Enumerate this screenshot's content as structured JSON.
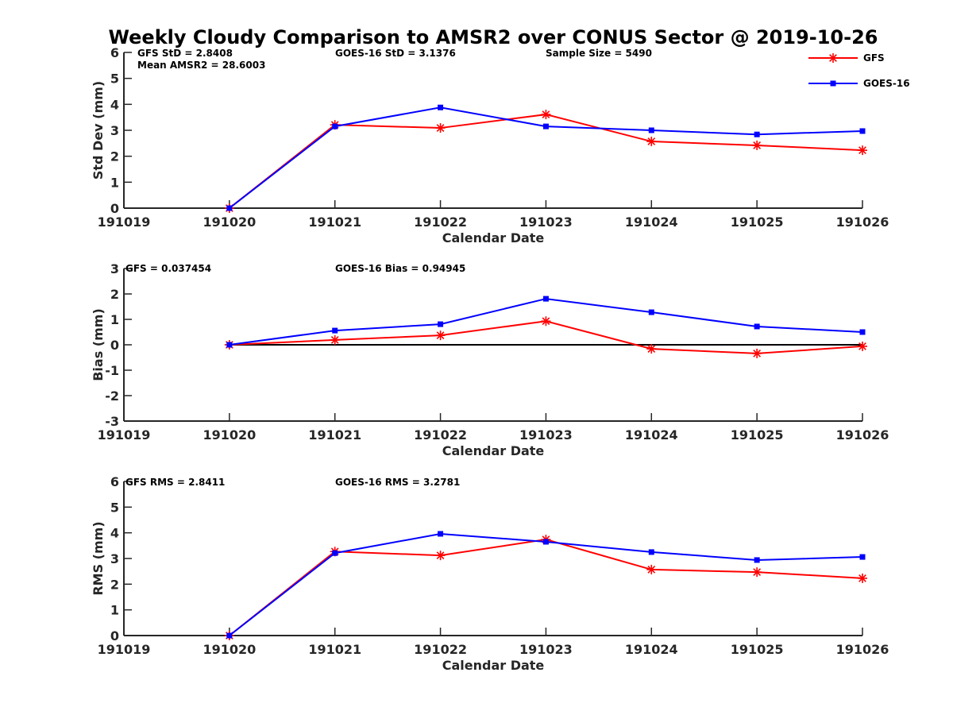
{
  "colors": {
    "gfs": "#ff0000",
    "goes": "#0000ff",
    "axis": "#262626",
    "zero_line": "#000000"
  },
  "chart_data": {
    "title": "Weekly Cloudy Comparison to AMSR2 over CONUS Sector @ 2019-10-26",
    "legend": {
      "placement": "top-right",
      "entries": [
        {
          "name": "GFS",
          "marker": "asterisk",
          "color": "#ff0000"
        },
        {
          "name": "GOES-16",
          "marker": "square",
          "color": "#0000ff"
        }
      ]
    },
    "panels": [
      {
        "type": "line",
        "ylabel": "Std Dev (mm)",
        "xlabel": "Calendar Date",
        "ylim": [
          0,
          6
        ],
        "yticks": [
          "0",
          "1",
          "2",
          "3",
          "4",
          "5",
          "6"
        ],
        "yticks_values": [
          0,
          1,
          2,
          3,
          4,
          5,
          6
        ],
        "xticks": [
          "191019",
          "191020",
          "191021",
          "191022",
          "191023",
          "191024",
          "191025",
          "191026"
        ],
        "zero_line": false,
        "annotations": [
          "GFS StD = 2.8408",
          "GOES-16 StD = 3.1376",
          "Sample Size = 5490",
          "Mean AMSR2 = 28.6003"
        ],
        "x": [
          "191020",
          "191021",
          "191022",
          "191023",
          "191024",
          "191025",
          "191026"
        ],
        "series": [
          {
            "name": "GFS",
            "values": [
              0.0,
              3.21,
              3.09,
              3.61,
              2.57,
              2.42,
              2.23
            ]
          },
          {
            "name": "GOES-16",
            "values": [
              0.0,
              3.15,
              3.88,
              3.15,
              3.0,
              2.84,
              2.97
            ]
          }
        ]
      },
      {
        "type": "line",
        "ylabel": "Bias (mm)",
        "xlabel": "Calendar Date",
        "ylim": [
          -3,
          3
        ],
        "yticks": [
          "-3",
          "-2",
          "-1",
          "0",
          "1",
          "2",
          "3"
        ],
        "yticks_values": [
          -3,
          -2,
          -1,
          0,
          1,
          2,
          3
        ],
        "xticks": [
          "191019",
          "191020",
          "191021",
          "191022",
          "191023",
          "191024",
          "191025",
          "191026"
        ],
        "zero_line": true,
        "annotations": [
          "GFS = 0.037454",
          "GOES-16 Bias  = 0.94945"
        ],
        "x": [
          "191020",
          "191021",
          "191022",
          "191023",
          "191024",
          "191025",
          "191026"
        ],
        "series": [
          {
            "name": "GFS",
            "values": [
              0.0,
              0.19,
              0.37,
              0.93,
              -0.16,
              -0.34,
              -0.06
            ]
          },
          {
            "name": "GOES-16",
            "values": [
              0.0,
              0.56,
              0.81,
              1.81,
              1.28,
              0.72,
              0.5
            ]
          }
        ]
      },
      {
        "type": "line",
        "ylabel": "RMS (mm)",
        "xlabel": "Calendar Date",
        "ylim": [
          0,
          6
        ],
        "yticks": [
          "0",
          "1",
          "2",
          "3",
          "4",
          "5",
          "6"
        ],
        "yticks_values": [
          0,
          1,
          2,
          3,
          4,
          5,
          6
        ],
        "xticks": [
          "191019",
          "191020",
          "191021",
          "191022",
          "191023",
          "191024",
          "191025",
          "191026"
        ],
        "zero_line": false,
        "annotations": [
          "GFS RMS = 2.8411",
          "GOES-16 RMS = 3.2781"
        ],
        "x": [
          "191020",
          "191021",
          "191022",
          "191023",
          "191024",
          "191025",
          "191026"
        ],
        "series": [
          {
            "name": "GFS",
            "values": [
              0.0,
              3.27,
              3.12,
              3.74,
              2.57,
              2.47,
              2.23
            ]
          },
          {
            "name": "GOES-16",
            "values": [
              0.0,
              3.21,
              3.96,
              3.65,
              3.25,
              2.94,
              3.06
            ]
          }
        ]
      }
    ]
  }
}
